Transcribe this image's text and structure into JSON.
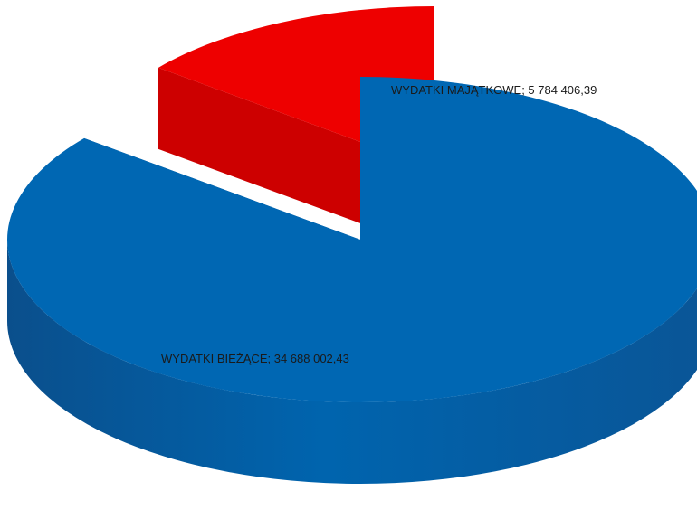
{
  "chart_data": {
    "type": "pie",
    "style": "3d-exploded",
    "title": "",
    "legend": "none",
    "slices": [
      {
        "label": "WYDATKI BIEŻĄCE",
        "value": 34688002.43,
        "value_text": "34 688 002,43",
        "color": "#0067B3",
        "exploded": false
      },
      {
        "label": "WYDATKI MAJĄTKOWE",
        "value": 5784406.39,
        "value_text": "5 784 406,39",
        "color": "#EE0000",
        "exploded": true
      }
    ]
  }
}
